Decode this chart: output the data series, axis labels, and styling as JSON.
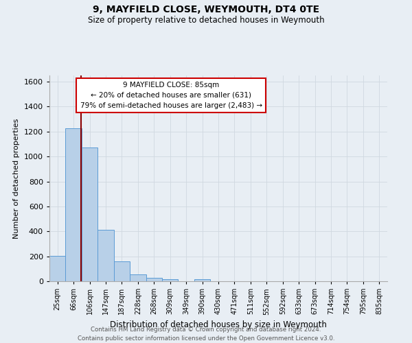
{
  "title": "9, MAYFIELD CLOSE, WEYMOUTH, DT4 0TE",
  "subtitle": "Size of property relative to detached houses in Weymouth",
  "xlabel": "Distribution of detached houses by size in Weymouth",
  "ylabel": "Number of detached properties",
  "categories": [
    "25sqm",
    "66sqm",
    "106sqm",
    "147sqm",
    "187sqm",
    "228sqm",
    "268sqm",
    "309sqm",
    "349sqm",
    "390sqm",
    "430sqm",
    "471sqm",
    "511sqm",
    "552sqm",
    "592sqm",
    "633sqm",
    "673sqm",
    "714sqm",
    "754sqm",
    "795sqm",
    "835sqm"
  ],
  "bar_values": [
    205,
    1225,
    1070,
    410,
    160,
    55,
    25,
    15,
    0,
    15,
    0,
    0,
    0,
    0,
    0,
    0,
    0,
    0,
    0,
    0,
    0
  ],
  "bar_color": "#b8d0e8",
  "bar_edge_color": "#5b9bd5",
  "ylim": [
    0,
    1650
  ],
  "yticks": [
    0,
    200,
    400,
    600,
    800,
    1000,
    1200,
    1400,
    1600
  ],
  "property_line_color": "#8b0000",
  "annotation_title": "9 MAYFIELD CLOSE: 85sqm",
  "annotation_line1": "← 20% of detached houses are smaller (631)",
  "annotation_line2": "79% of semi-detached houses are larger (2,483) →",
  "annotation_box_facecolor": "#ffffff",
  "annotation_box_edgecolor": "#cc0000",
  "footer_line1": "Contains HM Land Registry data © Crown copyright and database right 2024.",
  "footer_line2": "Contains public sector information licensed under the Open Government Licence v3.0.",
  "background_color": "#e8eef4",
  "grid_color": "#d0d8e0"
}
